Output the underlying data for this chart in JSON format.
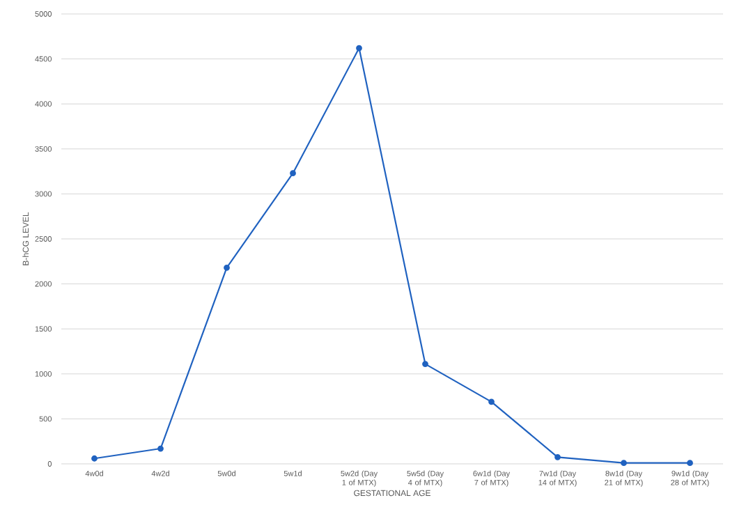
{
  "chart_data": {
    "type": "line",
    "xlabel": "GESTATIONAL AGE",
    "ylabel": "B-hCG LEVEL",
    "categories": [
      "4w0d",
      "4w2d",
      "5w0d",
      "5w1d",
      "5w2d (Day 1 of MTX)",
      "5w5d (Day 4 of MTX)",
      "6w1d (Day 7 of MTX)",
      "7w1d (Day 14 of MTX)",
      "8w1d (Day 21 of MTX)",
      "9w1d (Day 28 of MTX)"
    ],
    "values": [
      60,
      170,
      2180,
      3230,
      4620,
      1110,
      690,
      75,
      10,
      10
    ],
    "color": "#2062c0",
    "ylim": [
      0,
      5000
    ],
    "yticks": [
      0,
      500,
      1000,
      1500,
      2000,
      2500,
      3000,
      3500,
      4000,
      4500,
      5000
    ],
    "grid": "y",
    "marker": "circle",
    "line_style": "solid"
  }
}
